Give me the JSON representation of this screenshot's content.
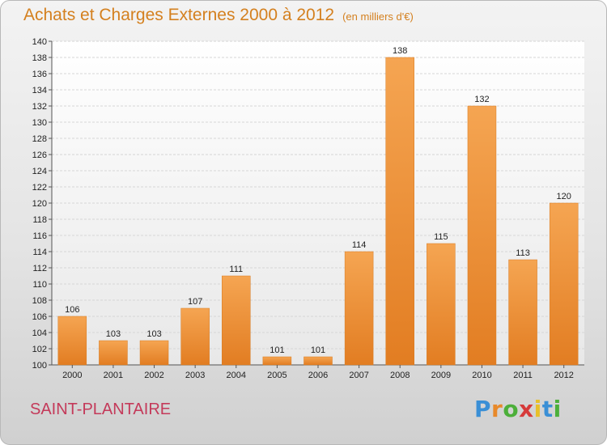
{
  "chart_data": {
    "type": "bar",
    "title": "Achats et Charges Externes 2000 à 2012",
    "subtitle": "(en milliers d'€)",
    "categories": [
      "2000",
      "2001",
      "2002",
      "2003",
      "2004",
      "2005",
      "2006",
      "2007",
      "2008",
      "2009",
      "2010",
      "2011",
      "2012"
    ],
    "values": [
      106,
      103,
      103,
      107,
      111,
      101,
      101,
      114,
      138,
      115,
      132,
      113,
      120
    ],
    "ylim": [
      100,
      140
    ],
    "ytick_step": 2,
    "grid": true,
    "bar_color": "#f0a050"
  },
  "footer": {
    "place_name": "SAINT-PLANTAIRE",
    "logo_text": "Proxiti"
  },
  "colors": {
    "title": "#d4801f",
    "place": "#c43a5a",
    "logo_letters": [
      "#3a8fd6",
      "#e8892a",
      "#4caf3a",
      "#d63a3a",
      "#e8c02a",
      "#3a8fd6",
      "#4caf3a"
    ]
  }
}
